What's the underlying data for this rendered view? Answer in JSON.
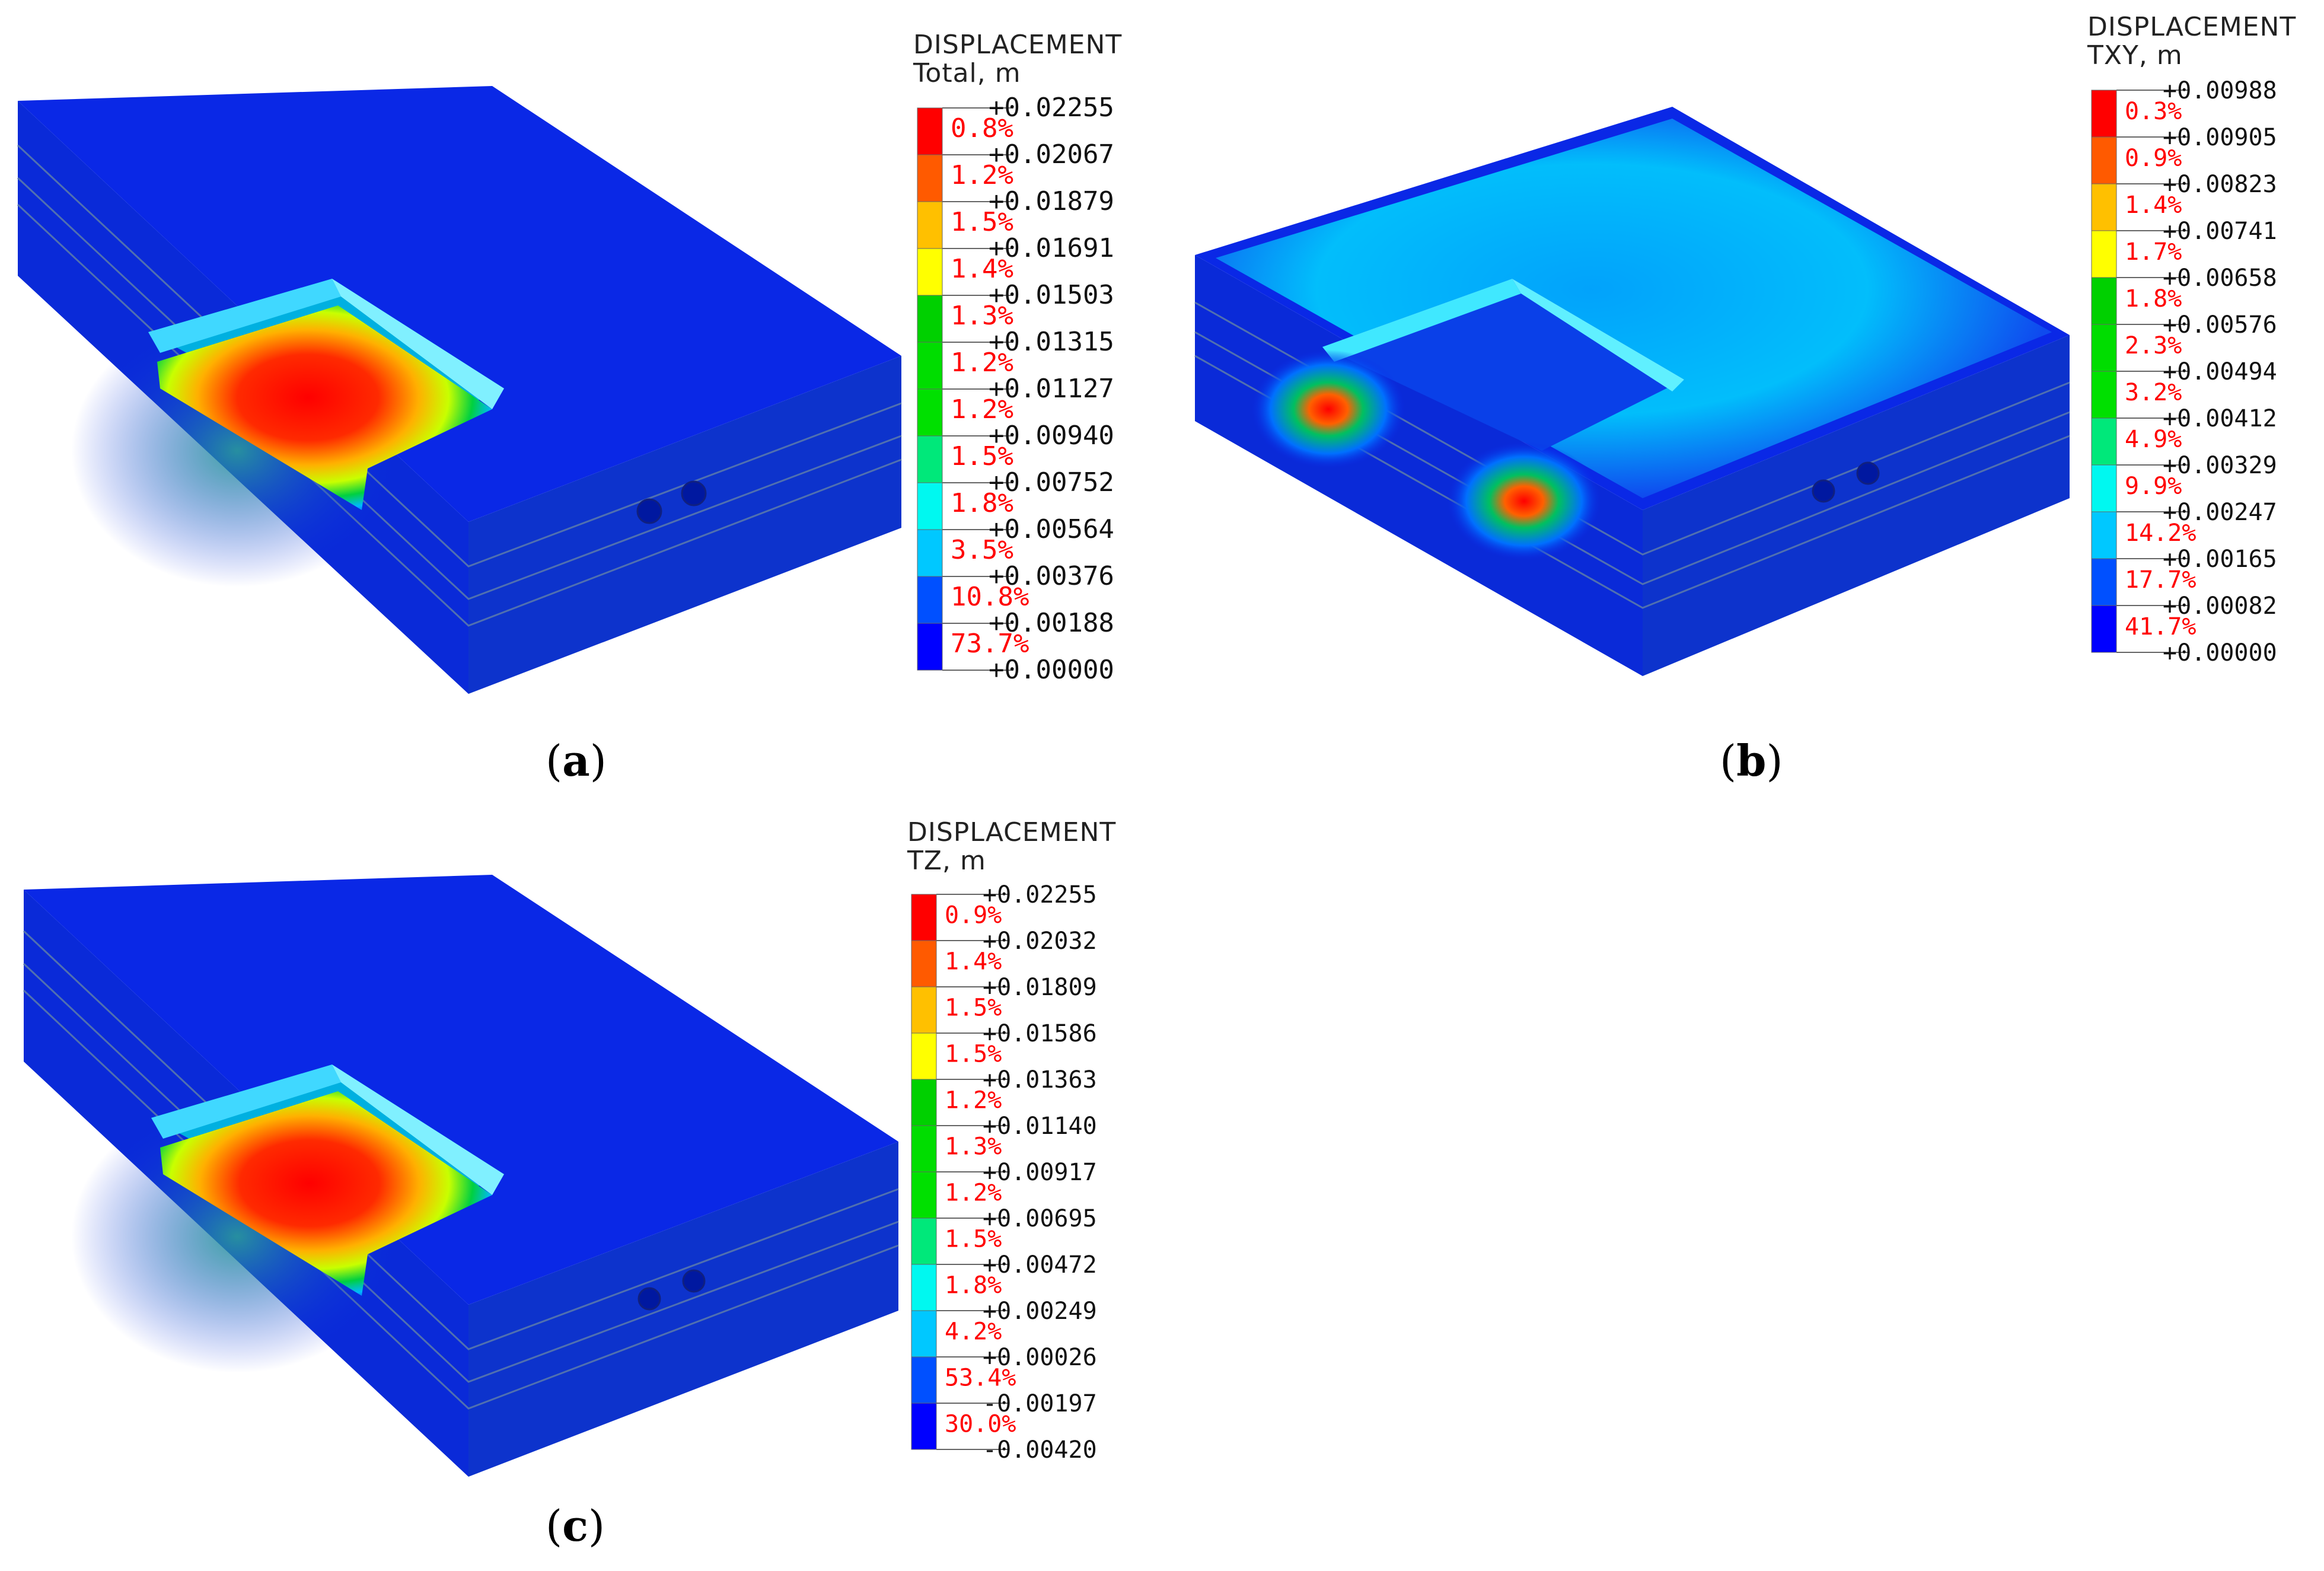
{
  "panels": [
    {
      "id": "a",
      "label_letter": "a",
      "legend": {
        "title_line1": "DISPLACEMENT",
        "title_line2": "Total, m",
        "values": [
          "+0.02255",
          "+0.02067",
          "+0.01879",
          "+0.01691",
          "+0.01503",
          "+0.01315",
          "+0.01127",
          "+0.00940",
          "+0.00752",
          "+0.00564",
          "+0.00376",
          "+0.00188",
          "+0.00000"
        ],
        "percents": [
          "0.8%",
          "1.2%",
          "1.5%",
          "1.4%",
          "1.3%",
          "1.2%",
          "1.2%",
          "1.5%",
          "1.8%",
          "3.5%",
          "10.8%",
          "73.7%"
        ]
      }
    },
    {
      "id": "b",
      "label_letter": "b",
      "legend": {
        "title_line1": "DISPLACEMENT",
        "title_line2": "TXY, m",
        "values": [
          "+0.00988",
          "+0.00905",
          "+0.00823",
          "+0.00741",
          "+0.00658",
          "+0.00576",
          "+0.00494",
          "+0.00412",
          "+0.00329",
          "+0.00247",
          "+0.00165",
          "+0.00082",
          "+0.00000"
        ],
        "percents": [
          "0.3%",
          "0.9%",
          "1.4%",
          "1.7%",
          "1.8%",
          "2.3%",
          "3.2%",
          "4.9%",
          "9.9%",
          "14.2%",
          "17.7%",
          "41.7%"
        ]
      }
    },
    {
      "id": "c",
      "label_letter": "c",
      "legend": {
        "title_line1": "DISPLACEMENT",
        "title_line2": "TZ, m",
        "values": [
          "+0.02255",
          "+0.02032",
          "+0.01809",
          "+0.01586",
          "+0.01363",
          "+0.01140",
          "+0.00917",
          "+0.00695",
          "+0.00472",
          "+0.00249",
          "+0.00026",
          "-0.00197",
          "-0.00420"
        ],
        "percents": [
          "0.9%",
          "1.4%",
          "1.5%",
          "1.5%",
          "1.2%",
          "1.3%",
          "1.2%",
          "1.5%",
          "1.8%",
          "4.2%",
          "53.4%",
          "30.0%"
        ]
      }
    }
  ],
  "colors": {
    "scale": [
      "#ff0000",
      "#ff5a00",
      "#ffc000",
      "#ffff00",
      "#00d000",
      "#00dd00",
      "#00e000",
      "#00e87a",
      "#00f8f0",
      "#00c8ff",
      "#0050ff",
      "#0000ff"
    ],
    "base_blue": "#0a28e6",
    "legend_percent_text": "#ff0000"
  }
}
